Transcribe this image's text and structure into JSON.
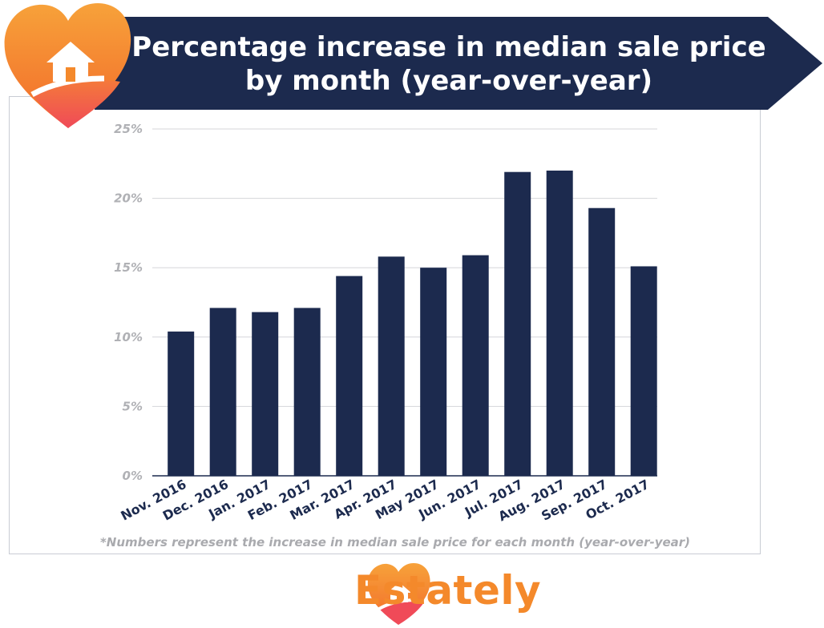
{
  "header": {
    "title": "Percentage increase in median sale price by month (year-over-year)"
  },
  "chart_data": {
    "type": "bar",
    "title": "Percentage increase in median sale price by month (year-over-year)",
    "categories": [
      "Nov. 2016",
      "Dec. 2016",
      "Jan. 2017",
      "Feb. 2017",
      "Mar. 2017",
      "Apr. 2017",
      "May 2017",
      "Jun. 2017",
      "Jul. 2017",
      "Aug. 2017",
      "Sep. 2017",
      "Oct. 2017"
    ],
    "values": [
      10.4,
      12.1,
      11.8,
      12.1,
      14.4,
      15.8,
      15.0,
      15.9,
      21.9,
      22.0,
      19.3,
      15.1
    ],
    "ylim": [
      0,
      25
    ],
    "y_ticks": [
      0,
      5,
      10,
      15,
      20,
      25
    ],
    "y_tick_labels": [
      "0%",
      "5%",
      "10%",
      "15%",
      "20%",
      "25%"
    ],
    "grid": true,
    "xlabel": "",
    "ylabel": "",
    "bar_color": "#1c2a4e"
  },
  "footnote": "*Numbers represent the increase in median sale price for each month (year-over-year)",
  "brand": {
    "name": "Estately",
    "logo_icon": "heart-house-icon",
    "color": "#f4892b"
  },
  "colors": {
    "navy": "#1c2a4e",
    "orange": "#f4892b",
    "grid": "#d5d6da"
  }
}
